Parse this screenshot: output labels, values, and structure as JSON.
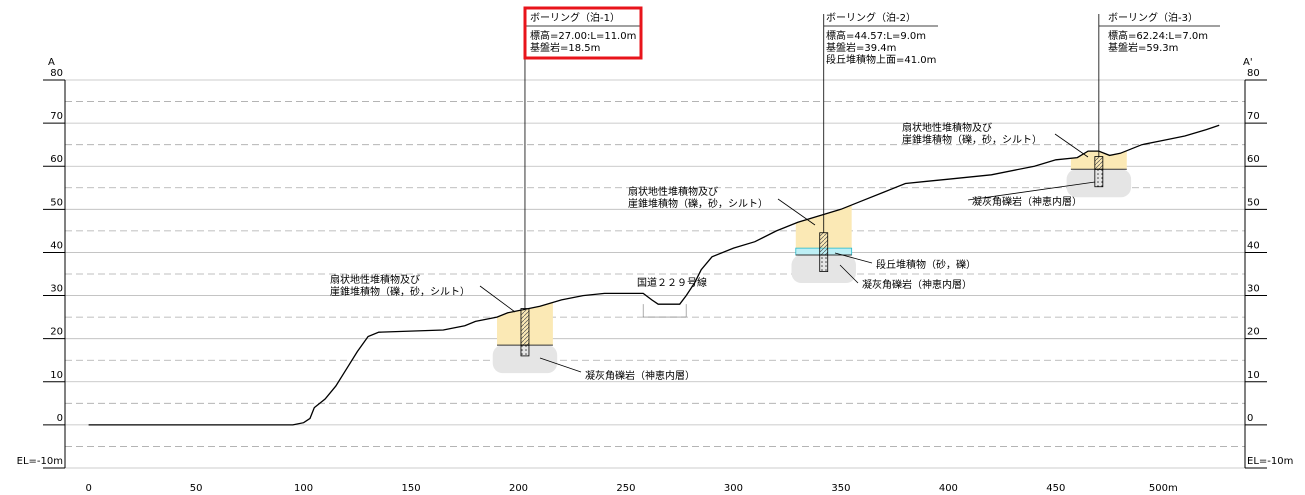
{
  "chart_data": {
    "type": "line",
    "color": "#000000",
    "section_start": "A",
    "section_end": "A'",
    "x": [
      0,
      95,
      100,
      103,
      105,
      110,
      115,
      120,
      125,
      130,
      135,
      165,
      170,
      175,
      180,
      190,
      195,
      200,
      210,
      220,
      230,
      240,
      258,
      262,
      265,
      275,
      278,
      282,
      285,
      290,
      300,
      310,
      320,
      330,
      340,
      350,
      360,
      370,
      380,
      390,
      400,
      420,
      440,
      450,
      460,
      465,
      470,
      475,
      480,
      490,
      500,
      510,
      520,
      526
    ],
    "values": [
      0,
      0,
      0.5,
      1.5,
      4,
      6,
      9,
      13,
      17,
      20.5,
      21.5,
      22,
      22.5,
      23,
      24,
      25,
      26,
      26.5,
      27.5,
      29,
      30,
      30.5,
      30.5,
      29,
      28,
      28,
      30,
      33,
      36,
      39,
      41,
      42.5,
      45,
      47,
      48.5,
      50,
      52,
      54,
      56,
      56.5,
      57,
      58,
      60,
      61.5,
      62,
      63.5,
      63.5,
      62.5,
      63,
      65,
      66,
      67,
      68.5,
      69.5
    ],
    "xlim": [
      -11,
      538
    ],
    "ylim": [
      -10,
      80
    ],
    "xticks": [
      0,
      50,
      100,
      150,
      200,
      250,
      300,
      350,
      400,
      450,
      {
        "value": 500,
        "label": "500m"
      }
    ],
    "yticks": [
      {
        "value": -10,
        "label": "EL=-10m"
      },
      0,
      10,
      20,
      30,
      40,
      50,
      60,
      70,
      80
    ],
    "yminor": [
      -5,
      5,
      15,
      25,
      35,
      45,
      55,
      65,
      75
    ],
    "grid": true,
    "boreholes": [
      {
        "title": "ボーリング（泊-1）",
        "lines": [
          "標高=27.00:L=11.0m",
          "基盤岩=18.5m"
        ],
        "x": 203,
        "top": 27.0,
        "depth": 11.0,
        "bedrock": 18.5,
        "highlight": "#e8141b"
      },
      {
        "title": "ボーリング（泊-2）",
        "lines": [
          "標高=44.57:L=9.0m",
          "基盤岩=39.4m",
          "段丘堆積物上面=41.0m"
        ],
        "x": 342,
        "top": 44.57,
        "depth": 9.0,
        "bedrock": 39.4,
        "terrace": 41.0
      },
      {
        "title": "ボーリング（泊-3）",
        "lines": [
          "標高=62.24:L=7.0m",
          "基盤岩=59.3m"
        ],
        "x": 470,
        "top": 62.24,
        "depth": 7.0,
        "bedrock": 59.3
      }
    ],
    "annotations": [
      [
        "扇状地性堆積物及び",
        "崖錐堆積物（礫，砂，シルト）"
      ],
      [
        "扇状地性堆積物及び",
        "崖錐堆積物（礫，砂，シルト）"
      ],
      [
        "扇状地性堆積物及び",
        "崖錐堆積物（礫，砂，シルト）"
      ],
      [
        "凝灰角礫岩（神恵内層）"
      ],
      [
        "段丘堆積物（砂，礫）"
      ],
      [
        "凝灰角礫岩（神恵内層）"
      ],
      [
        "凝灰角礫岩（神恵内層）"
      ],
      [
        "国道２２９号線"
      ]
    ]
  }
}
